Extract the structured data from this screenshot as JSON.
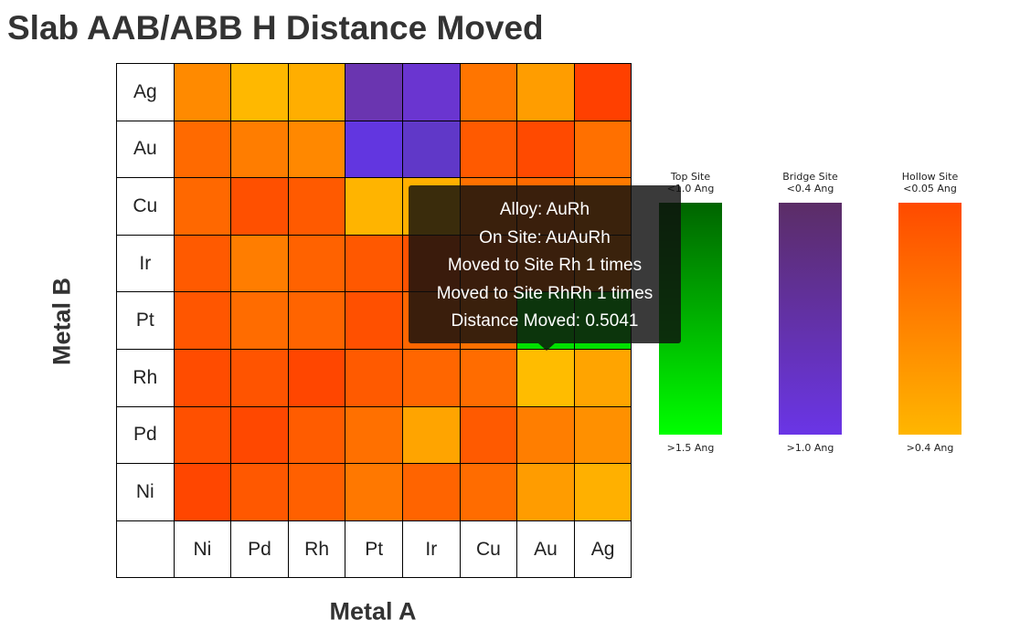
{
  "chart_data": {
    "type": "heatmap",
    "title": "Slab AAB/ABB H Distance Moved",
    "xlabel": "Metal A",
    "ylabel": "Metal B",
    "x_categories": [
      "Ni",
      "Pd",
      "Rh",
      "Pt",
      "Ir",
      "Cu",
      "Au",
      "Ag"
    ],
    "y_categories": [
      "Ag",
      "Au",
      "Cu",
      "Ir",
      "Pt",
      "Rh",
      "Pd",
      "Ni"
    ],
    "cells": [
      [
        "#ff8a00",
        "#ffb800",
        "#ffae00",
        "#6a35b0",
        "#6a35d0",
        "#ff7500",
        "#ff9d00",
        "#ff4000"
      ],
      [
        "#ff6a00",
        "#ff7d00",
        "#ff8800",
        "#6236e0",
        "#6038c8",
        "#ff5a00",
        "#ff4a00",
        "#ff7000"
      ],
      [
        "#ff6800",
        "#ff5000",
        "#ff5a00",
        "#ffb400",
        "#ffb000",
        "#ff7000",
        "#ff6a00",
        "#ff7a00"
      ],
      [
        "#ff5a00",
        "#ff7d00",
        "#ff6200",
        "#ff5800",
        "#ff5200",
        "#ff6000",
        "#ff6a00",
        "#ff7c00"
      ],
      [
        "#ff5600",
        "#ff6c00",
        "#ff6400",
        "#ff5000",
        "#ff6600",
        "#ff7000",
        "#00e000",
        "#00e000"
      ],
      [
        "#ff4c00",
        "#ff5400",
        "#ff4600",
        "#ff5a00",
        "#ff6600",
        "#ff6c00",
        "#ffbc00",
        "#ffa400"
      ],
      [
        "#ff5000",
        "#ff4800",
        "#ff5c00",
        "#ff7000",
        "#ffa400",
        "#ff5a00",
        "#ff7e00",
        "#ff9000"
      ],
      [
        "#ff4600",
        "#ff5800",
        "#ff6000",
        "#ff7800",
        "#ff6400",
        "#ff6c00",
        "#ff9c00",
        "#ffb000"
      ]
    ],
    "legend": [
      {
        "title_lines": [
          "Top Site",
          "<1.0 Ang"
        ],
        "bottom": ">1.5 Ang",
        "top_color": "#006400",
        "bottom_color": "#00ff00"
      },
      {
        "title_lines": [
          "Bridge Site",
          "<0.4 Ang"
        ],
        "bottom": ">1.0 Ang",
        "top_color": "#5b2d66",
        "bottom_color": "#6a35e6"
      },
      {
        "title_lines": [
          "Hollow Site",
          "<0.05 Ang"
        ],
        "bottom": ">0.4 Ang",
        "top_color": "#ff4a00",
        "bottom_color": "#ffb600"
      }
    ],
    "tooltip": {
      "lines": [
        "Alloy: AuRh",
        "On Site: AuAuRh",
        "Moved to Site Rh 1 times",
        "Moved to Site RhRh 1 times",
        "Distance Moved: 0.5041"
      ]
    }
  }
}
